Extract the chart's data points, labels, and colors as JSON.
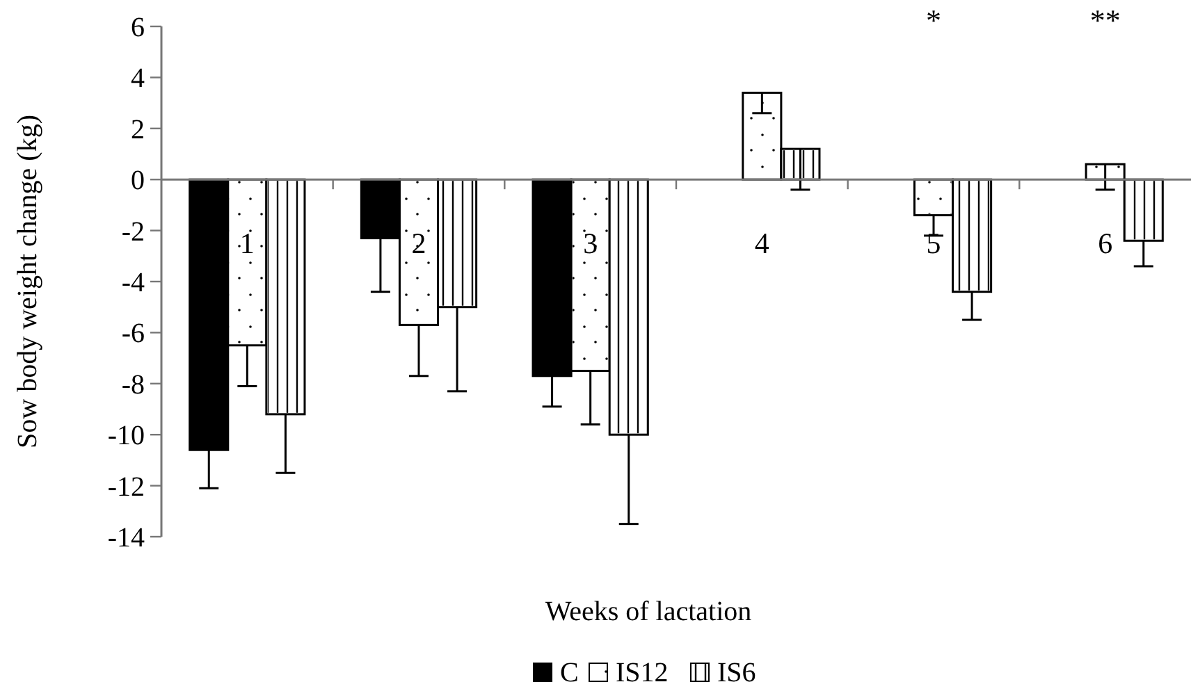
{
  "chart_data": {
    "type": "bar",
    "ylabel": "Sow body weight change (kg)",
    "xlabel": "Weeks of lactation",
    "categories": [
      "1",
      "2",
      "3",
      "4",
      "5",
      "6"
    ],
    "series": [
      {
        "name": "C",
        "color": "#000000",
        "values": [
          -10.6,
          -2.3,
          -7.7,
          null,
          null,
          null
        ],
        "errors": [
          [
            -12.1,
            -10.6
          ],
          [
            -4.4,
            -2.3
          ],
          [
            -8.9,
            -7.7
          ],
          null,
          null,
          null
        ]
      },
      {
        "name": "IS12",
        "color": "#ffffff",
        "values": [
          -6.5,
          -5.7,
          -7.5,
          3.4,
          -1.4,
          0.6
        ],
        "errors": [
          [
            -8.1,
            -6.5
          ],
          [
            -7.7,
            -5.7
          ],
          [
            -9.6,
            -7.5
          ],
          [
            2.6,
            3.4
          ],
          [
            -2.2,
            -1.4
          ],
          [
            -0.4,
            0.6
          ]
        ]
      },
      {
        "name": "IS6",
        "color": "#ffffff",
        "values": [
          -9.2,
          -5.0,
          -10.0,
          1.2,
          -4.4,
          -2.4
        ],
        "errors": [
          [
            -11.5,
            -9.2
          ],
          [
            -8.3,
            -5.0
          ],
          [
            -13.5,
            -10.0
          ],
          [
            -0.4,
            1.2
          ],
          [
            -5.5,
            -4.4
          ],
          [
            -3.4,
            -2.4
          ]
        ]
      }
    ],
    "ylim": [
      -14,
      6
    ],
    "yticks": [
      -14,
      -12,
      -10,
      -8,
      -6,
      -4,
      -2,
      0,
      2,
      4,
      6
    ],
    "annotations": [
      "*",
      "**"
    ],
    "legend": "bottom",
    "grid": false
  }
}
